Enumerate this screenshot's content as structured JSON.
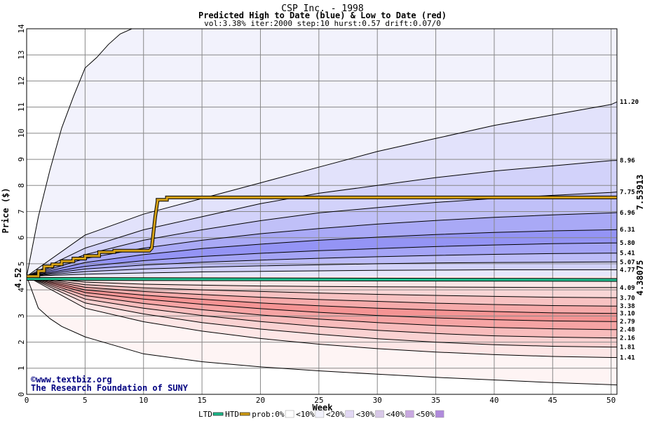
{
  "header": {
    "title": "CSP Inc. - 1998",
    "subtitle": "Predicted High to Date (blue) &  Low to Date (red)",
    "params": "vol:3.38% iter:2000 step:10 hurst:0.57 drift:0.07/0"
  },
  "credits": {
    "line1": "©www.textbiz.org",
    "line2": "The Research Foundation of SUNY"
  },
  "colors": {
    "grid": "#888888",
    "htd_line": "#d4a017",
    "ltd_line": "#20c090",
    "htd_value_color": "#a07000",
    "ltd_value_color": "#109070"
  },
  "chart_data": {
    "type": "area",
    "xlabel": "Week",
    "ylabel": "Price ($)",
    "xlim": [
      0,
      50.5
    ],
    "ylim": [
      0,
      14
    ],
    "xticks": [
      0,
      5,
      10,
      15,
      20,
      25,
      30,
      35,
      40,
      45,
      50
    ],
    "yticks": [
      0,
      1,
      2,
      3,
      4,
      5,
      6,
      7,
      8,
      9,
      10,
      11,
      12,
      13,
      14
    ],
    "grid": true,
    "start_price": "4.52",
    "htd_final": "7.53913",
    "ltd_final": "4.38075",
    "right_labels_high": [
      "11.20",
      "8.96",
      "7.75",
      "6.96",
      "6.31",
      "5.80",
      "5.41",
      "5.07",
      "4.77"
    ],
    "right_labels_low": [
      "4.09",
      "3.70",
      "3.38",
      "3.10",
      "2.79",
      "2.48",
      "2.16",
      "1.81",
      "1.41"
    ],
    "upper_bands": [
      {
        "x": [
          0,
          1,
          2,
          3,
          4,
          5,
          6,
          7,
          8,
          9,
          10,
          50.5
        ],
        "y": [
          4.52,
          6.8,
          8.6,
          10.2,
          11.4,
          12.5,
          12.9,
          13.4,
          13.8,
          14.0,
          14.0,
          14.0
        ]
      },
      {
        "x": [
          0,
          5,
          10,
          15,
          20,
          25,
          30,
          35,
          40,
          45,
          50,
          50.5
        ],
        "y": [
          4.52,
          6.1,
          6.9,
          7.5,
          8.1,
          8.7,
          9.3,
          9.8,
          10.3,
          10.7,
          11.1,
          11.2
        ]
      },
      {
        "x": [
          0,
          5,
          10,
          15,
          20,
          25,
          30,
          35,
          40,
          45,
          50,
          50.5
        ],
        "y": [
          4.52,
          5.6,
          6.3,
          6.8,
          7.3,
          7.7,
          8.0,
          8.3,
          8.55,
          8.75,
          8.95,
          8.96
        ]
      },
      {
        "x": [
          0,
          5,
          10,
          15,
          20,
          25,
          30,
          35,
          40,
          45,
          50,
          50.5
        ],
        "y": [
          4.52,
          5.35,
          5.9,
          6.3,
          6.65,
          6.95,
          7.15,
          7.35,
          7.5,
          7.62,
          7.73,
          7.75
        ]
      },
      {
        "x": [
          0,
          5,
          10,
          15,
          20,
          25,
          30,
          35,
          40,
          45,
          50,
          50.5
        ],
        "y": [
          4.52,
          5.2,
          5.6,
          5.9,
          6.15,
          6.35,
          6.52,
          6.66,
          6.78,
          6.87,
          6.95,
          6.96
        ]
      },
      {
        "x": [
          0,
          5,
          10,
          15,
          20,
          25,
          30,
          35,
          40,
          45,
          50,
          50.5
        ],
        "y": [
          4.52,
          5.05,
          5.35,
          5.58,
          5.75,
          5.9,
          6.02,
          6.12,
          6.2,
          6.26,
          6.3,
          6.31
        ]
      },
      {
        "x": [
          0,
          5,
          10,
          15,
          20,
          25,
          30,
          35,
          40,
          45,
          50,
          50.5
        ],
        "y": [
          4.52,
          4.9,
          5.12,
          5.28,
          5.4,
          5.5,
          5.58,
          5.66,
          5.72,
          5.77,
          5.8,
          5.8
        ]
      },
      {
        "x": [
          0,
          5,
          10,
          15,
          20,
          25,
          30,
          35,
          40,
          45,
          50,
          50.5
        ],
        "y": [
          4.52,
          4.8,
          4.95,
          5.06,
          5.14,
          5.21,
          5.27,
          5.32,
          5.36,
          5.39,
          5.41,
          5.41
        ]
      },
      {
        "x": [
          0,
          5,
          10,
          15,
          20,
          25,
          30,
          35,
          40,
          45,
          50,
          50.5
        ],
        "y": [
          4.52,
          4.7,
          4.8,
          4.87,
          4.92,
          4.96,
          5.0,
          5.03,
          5.05,
          5.06,
          5.07,
          5.07
        ]
      },
      {
        "x": [
          0,
          5,
          10,
          15,
          20,
          25,
          30,
          35,
          40,
          45,
          50,
          50.5
        ],
        "y": [
          4.52,
          4.6,
          4.65,
          4.69,
          4.71,
          4.73,
          4.75,
          4.76,
          4.77,
          4.77,
          4.77,
          4.77
        ]
      }
    ],
    "lower_bands": [
      {
        "x": [
          0,
          5,
          10,
          15,
          20,
          25,
          30,
          35,
          40,
          45,
          50,
          50.5
        ],
        "y": [
          4.52,
          4.3,
          4.22,
          4.18,
          4.15,
          4.13,
          4.12,
          4.11,
          4.1,
          4.09,
          4.09,
          4.09
        ]
      },
      {
        "x": [
          0,
          5,
          10,
          15,
          20,
          25,
          30,
          35,
          40,
          45,
          50,
          50.5
        ],
        "y": [
          4.52,
          4.2,
          4.08,
          4.0,
          3.94,
          3.88,
          3.83,
          3.79,
          3.75,
          3.72,
          3.7,
          3.7
        ]
      },
      {
        "x": [
          0,
          5,
          10,
          15,
          20,
          25,
          30,
          35,
          40,
          45,
          50,
          50.5
        ],
        "y": [
          4.52,
          4.1,
          3.94,
          3.82,
          3.72,
          3.63,
          3.56,
          3.49,
          3.44,
          3.4,
          3.38,
          3.38
        ]
      },
      {
        "x": [
          0,
          5,
          10,
          15,
          20,
          25,
          30,
          35,
          40,
          45,
          50,
          50.5
        ],
        "y": [
          4.52,
          4.0,
          3.8,
          3.64,
          3.5,
          3.39,
          3.3,
          3.23,
          3.17,
          3.12,
          3.1,
          3.1
        ]
      },
      {
        "x": [
          0,
          5,
          10,
          15,
          20,
          25,
          30,
          35,
          40,
          45,
          50,
          50.5
        ],
        "y": [
          4.52,
          3.9,
          3.65,
          3.45,
          3.28,
          3.14,
          3.02,
          2.93,
          2.86,
          2.81,
          2.79,
          2.79
        ]
      },
      {
        "x": [
          0,
          5,
          10,
          15,
          20,
          25,
          30,
          35,
          40,
          45,
          50,
          50.5
        ],
        "y": [
          4.52,
          3.78,
          3.48,
          3.24,
          3.04,
          2.88,
          2.75,
          2.64,
          2.56,
          2.51,
          2.48,
          2.48
        ]
      },
      {
        "x": [
          0,
          5,
          10,
          15,
          20,
          25,
          30,
          35,
          40,
          45,
          50,
          50.5
        ],
        "y": [
          4.52,
          3.65,
          3.3,
          3.02,
          2.79,
          2.6,
          2.45,
          2.33,
          2.24,
          2.19,
          2.16,
          2.16
        ]
      },
      {
        "x": [
          0,
          5,
          10,
          15,
          20,
          25,
          30,
          35,
          40,
          45,
          50,
          50.5
        ],
        "y": [
          4.52,
          3.5,
          3.08,
          2.75,
          2.5,
          2.3,
          2.13,
          2.0,
          1.9,
          1.84,
          1.81,
          1.81
        ]
      },
      {
        "x": [
          0,
          5,
          10,
          15,
          20,
          25,
          30,
          35,
          40,
          45,
          50,
          50.5
        ],
        "y": [
          4.52,
          3.3,
          2.78,
          2.42,
          2.14,
          1.92,
          1.75,
          1.62,
          1.52,
          1.45,
          1.41,
          1.41
        ]
      },
      {
        "x": [
          0,
          1,
          2,
          3,
          5,
          10,
          15,
          20,
          25,
          30,
          35,
          40,
          45,
          50,
          50.5
        ],
        "y": [
          4.52,
          3.3,
          2.9,
          2.6,
          2.2,
          1.55,
          1.25,
          1.05,
          0.9,
          0.77,
          0.65,
          0.55,
          0.45,
          0.37,
          0.36
        ]
      }
    ],
    "upper_fills": [
      "#f2f2fc",
      "#e2e2fb",
      "#d2d2fa",
      "#c0c0f8",
      "#a9a9f6",
      "#9494f5",
      "#a4a4f6",
      "#bcbcf8",
      "#d2d2fa",
      "#e6e6fc"
    ],
    "lower_fills": [
      "#fbe6e6",
      "#f9d6d6",
      "#f8c2c2",
      "#f6aaaa",
      "#f59494",
      "#f6a4a4",
      "#f8bcbc",
      "#fad2d2",
      "#fde6e6",
      "#fef4f4"
    ],
    "htd_path": {
      "x": [
        0,
        1,
        1,
        1.5,
        1.5,
        2.2,
        2.2,
        3.0,
        3.0,
        4.0,
        4.0,
        5.0,
        5.0,
        6.2,
        6.2,
        7.5,
        7.5,
        10.5,
        10.7,
        11,
        11.2,
        11.2,
        12,
        12,
        15,
        50.5
      ],
      "y": [
        4.52,
        4.52,
        4.72,
        4.72,
        4.9,
        4.9,
        4.98,
        4.98,
        5.1,
        5.1,
        5.2,
        5.2,
        5.3,
        5.3,
        5.45,
        5.45,
        5.5,
        5.5,
        5.6,
        6.8,
        7.4,
        7.45,
        7.45,
        7.54,
        7.54,
        7.54
      ]
    },
    "ltd_path": {
      "x": [
        0,
        50.5
      ],
      "y": [
        4.42,
        4.38
      ]
    },
    "legend": {
      "items": [
        "LTD",
        "HTD",
        "prob:0%",
        "<10%",
        "<20%",
        "<30%",
        "<40%",
        "<50%"
      ],
      "swatches": [
        "#20c090",
        "#d4a017",
        "#ffffff",
        "#f2f2fc",
        "#e2d8f4",
        "#d8c8e8",
        "#c8a8e0",
        "#b08adc"
      ]
    }
  }
}
